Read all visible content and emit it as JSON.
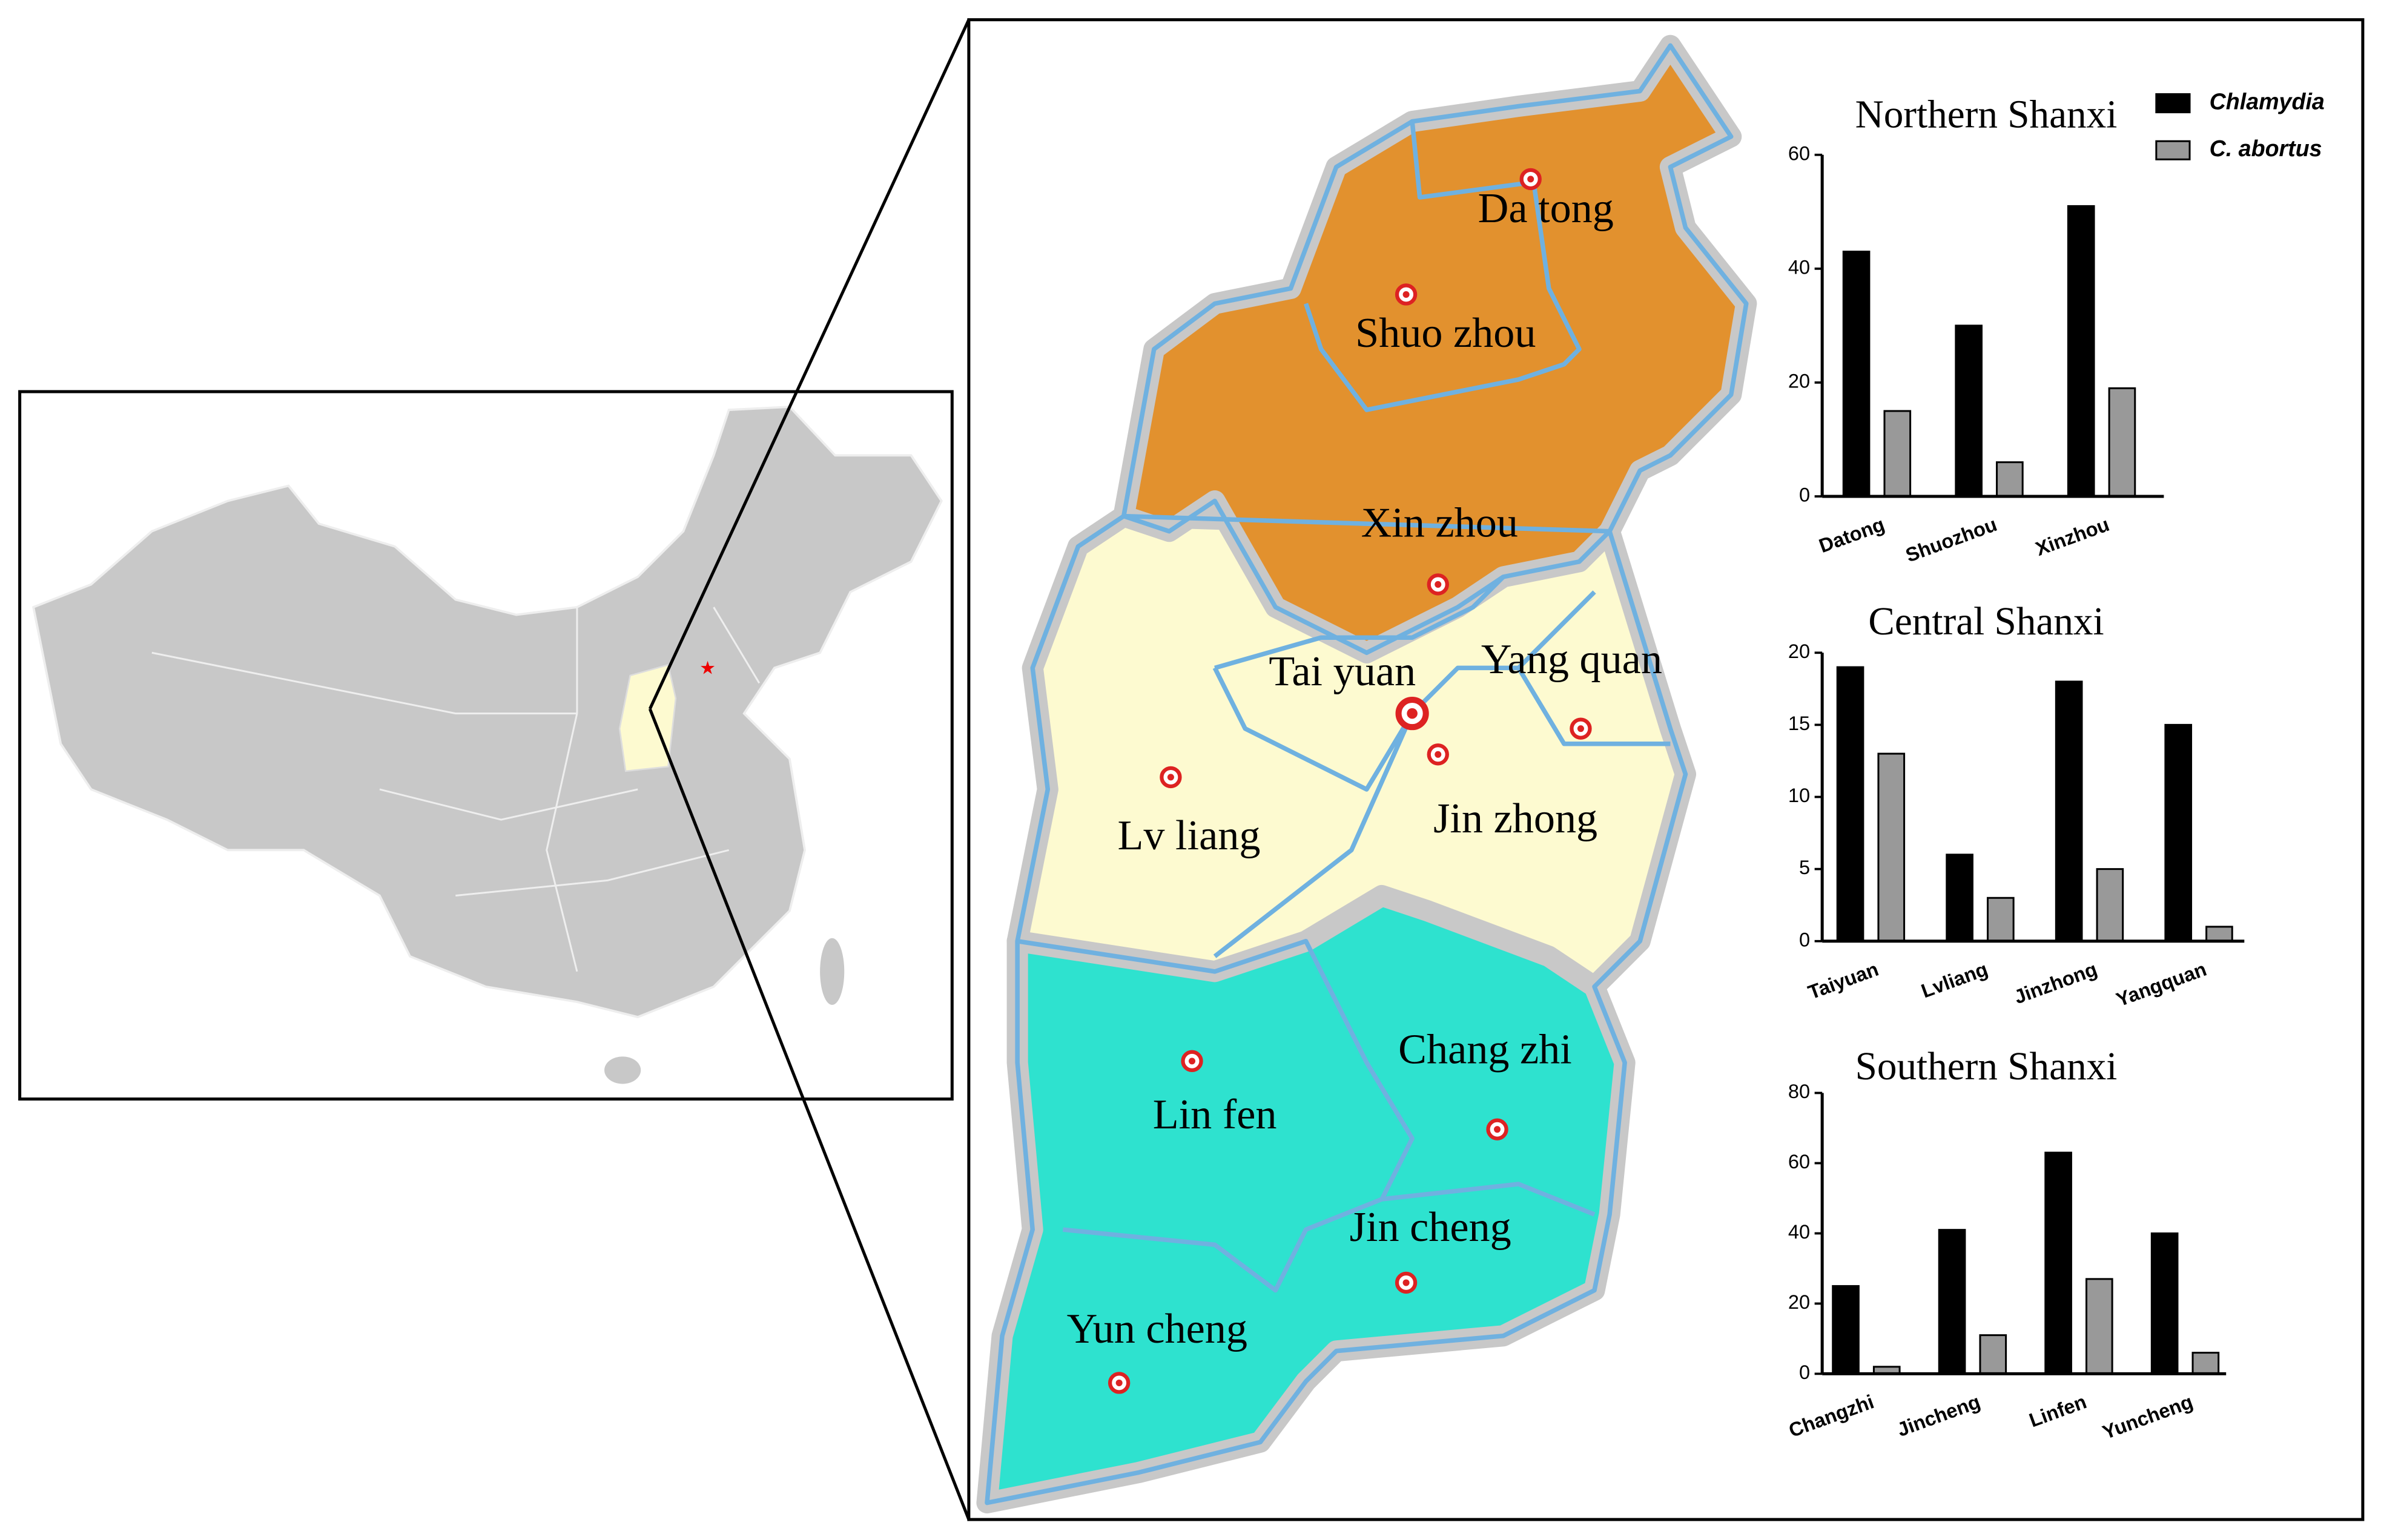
{
  "chart_data": [
    {
      "type": "bar",
      "title": "Northern Shanxi",
      "categories": [
        "Datong",
        "Shuozhou",
        "Xinzhou"
      ],
      "series": [
        {
          "name": "Chlamydia",
          "color": "#000000",
          "values": [
            43,
            30,
            51
          ]
        },
        {
          "name": "C. abortus",
          "color": "#999999",
          "values": [
            15,
            6,
            19
          ]
        }
      ],
      "ylim": [
        0,
        60
      ],
      "yticks": [
        0,
        20,
        40,
        60
      ],
      "legend": "top-right"
    },
    {
      "type": "bar",
      "title": "Central Shanxi",
      "categories": [
        "Taiyuan",
        "Lvliang",
        "Jinzhong",
        "Yangquan"
      ],
      "series": [
        {
          "color": "#000000",
          "values": [
            19,
            6,
            18,
            15
          ]
        },
        {
          "color": "#999999",
          "values": [
            13,
            3,
            5,
            1
          ]
        }
      ],
      "ylim": [
        0,
        20
      ],
      "yticks": [
        0,
        5,
        10,
        15,
        20
      ]
    },
    {
      "type": "bar",
      "title": "Southern Shanxi",
      "categories": [
        "Changzhi",
        "Jincheng",
        "Linfen",
        "Yuncheng"
      ],
      "series": [
        {
          "color": "#000000",
          "values": [
            25,
            41,
            63,
            40
          ]
        },
        {
          "color": "#999999",
          "values": [
            2,
            11,
            27,
            6
          ]
        }
      ],
      "ylim": [
        0,
        80
      ],
      "yticks": [
        0,
        20,
        40,
        60,
        80
      ]
    }
  ],
  "map": {
    "regions": [
      {
        "label": "Da tong"
      },
      {
        "label": "Shuo zhou"
      },
      {
        "label": "Xin zhou"
      },
      {
        "label": "Tai yuan"
      },
      {
        "label": "Yang quan"
      },
      {
        "label": "Lv liang"
      },
      {
        "label": "Jin zhong"
      },
      {
        "label": "Chang zhi"
      },
      {
        "label": "Lin fen"
      },
      {
        "label": "Jin cheng"
      },
      {
        "label": "Yun cheng"
      }
    ]
  }
}
